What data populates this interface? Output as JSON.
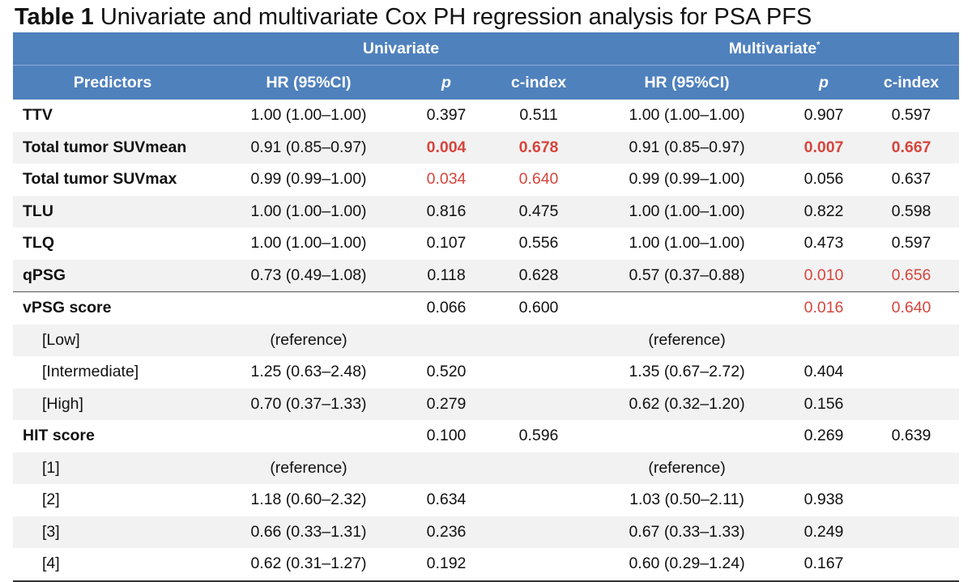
{
  "title": {
    "bold": "Table 1",
    "text": " Univariate and multivariate Cox PH regression analysis for PSA PFS"
  },
  "header": {
    "group_univariate": "Univariate",
    "group_multivariate": "Multivariate",
    "multivariate_mark": "*",
    "columns": [
      "Predictors",
      "HR (95%CI)",
      "p",
      "c-index",
      "HR (95%CI)",
      "p",
      "c-index"
    ]
  },
  "rows": [
    {
      "name": "TTV",
      "u_hr": "1.00 (1.00–1.00)",
      "u_p": "0.397",
      "u_c": "0.511",
      "m_hr": "1.00 (1.00–1.00)",
      "m_p": "0.907",
      "m_c": "0.597"
    },
    {
      "name": "Total tumor SUVmean",
      "u_hr": "0.91 (0.85–0.97)",
      "u_p": "0.004",
      "u_c": "0.678",
      "m_hr": "0.91 (0.85–0.97)",
      "m_p": "0.007",
      "m_c": "0.667"
    },
    {
      "name": "Total tumor SUVmax",
      "u_hr": "0.99 (0.99–1.00)",
      "u_p": "0.034",
      "u_c": "0.640",
      "m_hr": "0.99 (0.99–1.00)",
      "m_p": "0.056",
      "m_c": "0.637"
    },
    {
      "name": "TLU",
      "u_hr": "1.00 (1.00–1.00)",
      "u_p": "0.816",
      "u_c": "0.475",
      "m_hr": "1.00 (1.00–1.00)",
      "m_p": "0.822",
      "m_c": "0.598"
    },
    {
      "name": "TLQ",
      "u_hr": "1.00 (1.00–1.00)",
      "u_p": "0.107",
      "u_c": "0.556",
      "m_hr": "1.00 (1.00–1.00)",
      "m_p": "0.473",
      "m_c": "0.597"
    },
    {
      "name": "qPSG",
      "u_hr": "0.73 (0.49–1.08)",
      "u_p": "0.118",
      "u_c": "0.628",
      "m_hr": "0.57 (0.37–0.88)",
      "m_p": "0.010",
      "m_c": "0.656"
    },
    {
      "name": "vPSG score",
      "u_hr": "",
      "u_p": "0.066",
      "u_c": "0.600",
      "m_hr": "",
      "m_p": "0.016",
      "m_c": "0.640"
    },
    {
      "name": "[Low]",
      "u_hr": "(reference)",
      "u_p": "",
      "u_c": "",
      "m_hr": "(reference)",
      "m_p": "",
      "m_c": ""
    },
    {
      "name": "[Intermediate]",
      "u_hr": "1.25 (0.63–2.48)",
      "u_p": "0.520",
      "u_c": "",
      "m_hr": "1.35 (0.67–2.72)",
      "m_p": "0.404",
      "m_c": ""
    },
    {
      "name": "[High]",
      "u_hr": "0.70 (0.37–1.33)",
      "u_p": "0.279",
      "u_c": "",
      "m_hr": "0.62 (0.32–1.20)",
      "m_p": "0.156",
      "m_c": ""
    },
    {
      "name": "HIT score",
      "u_hr": "",
      "u_p": "0.100",
      "u_c": "0.596",
      "m_hr": "",
      "m_p": "0.269",
      "m_c": "0.639"
    },
    {
      "name": "[1]",
      "u_hr": "(reference)",
      "u_p": "",
      "u_c": "",
      "m_hr": "(reference)",
      "m_p": "",
      "m_c": ""
    },
    {
      "name": "[2]",
      "u_hr": "1.18 (0.60–2.32)",
      "u_p": "0.634",
      "u_c": "",
      "m_hr": "1.03 (0.50–2.11)",
      "m_p": "0.938",
      "m_c": ""
    },
    {
      "name": "[3]",
      "u_hr": "0.66 (0.33–1.31)",
      "u_p": "0.236",
      "u_c": "",
      "m_hr": "0.67 (0.33–1.33)",
      "m_p": "0.249",
      "m_c": ""
    },
    {
      "name": "[4]",
      "u_hr": "0.62 (0.31–1.27)",
      "u_p": "0.192",
      "u_c": "",
      "m_hr": "0.60 (0.29–1.24)",
      "m_p": "0.167",
      "m_c": ""
    }
  ],
  "colors": {
    "header_bg": "#4f81bd",
    "highlight_red": "#d6453c",
    "stripe": "#f2f2f2"
  }
}
